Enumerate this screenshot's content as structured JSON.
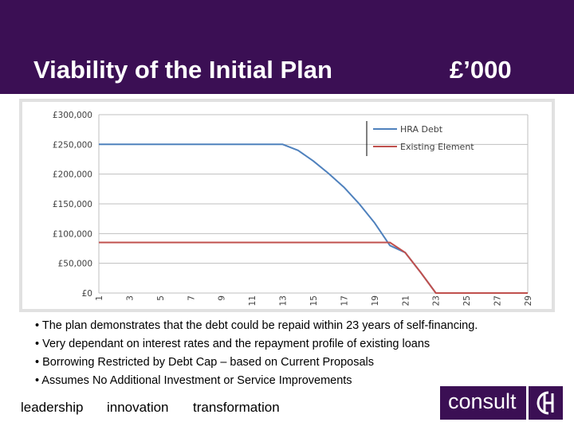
{
  "header": {
    "title": "Viability of the Initial Plan",
    "unit": "£’000",
    "bg": "#3b0f54"
  },
  "chart_data": {
    "type": "line",
    "title": "",
    "xlabel": "",
    "ylabel": "",
    "x": [
      1,
      2,
      3,
      4,
      5,
      6,
      7,
      8,
      9,
      10,
      11,
      12,
      13,
      14,
      15,
      16,
      17,
      18,
      19,
      20,
      21,
      22,
      23,
      24,
      25,
      26,
      27,
      28,
      29
    ],
    "x_tick_labels": [
      "1",
      "3",
      "5",
      "7",
      "9",
      "11",
      "13",
      "15",
      "17",
      "19",
      "21",
      "23",
      "25",
      "27",
      "29"
    ],
    "y_tick_labels": [
      "£0",
      "£50,000",
      "£100,000",
      "£150,000",
      "£200,000",
      "£250,000",
      "£300,000"
    ],
    "ylim": [
      0,
      300000
    ],
    "grid": "horizontal",
    "legend": "top-right",
    "series": [
      {
        "name": "HRA Debt",
        "color": "#4f81bd",
        "values": [
          250000,
          250000,
          250000,
          250000,
          250000,
          250000,
          250000,
          250000,
          250000,
          250000,
          250000,
          250000,
          250000,
          240000,
          222000,
          201000,
          178000,
          150000,
          118000,
          80000,
          68000,
          35000,
          0,
          0,
          0,
          0,
          0,
          0,
          0
        ]
      },
      {
        "name": "Existing Element",
        "color": "#c0504d",
        "values": [
          85000,
          85000,
          85000,
          85000,
          85000,
          85000,
          85000,
          85000,
          85000,
          85000,
          85000,
          85000,
          85000,
          85000,
          85000,
          85000,
          85000,
          85000,
          85000,
          85000,
          68000,
          35000,
          0,
          0,
          0,
          0,
          0,
          0,
          0
        ]
      }
    ]
  },
  "bullets": [
    "• The plan demonstrates that the debt could be repaid within 23 years of self-financing.",
    "• Very dependant on interest rates and the repayment profile of existing loans",
    "• Borrowing Restricted by Debt Cap – based on Current Proposals",
    "• Assumes No Additional Investment or Service Improvements"
  ],
  "footer": {
    "taglines": [
      "leadership",
      "innovation",
      "transformation"
    ],
    "logo_text": "consult"
  }
}
